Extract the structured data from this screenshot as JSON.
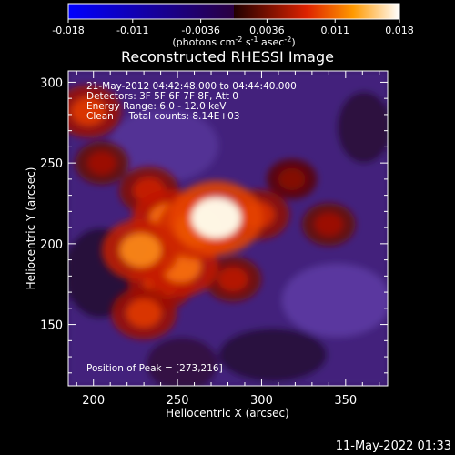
{
  "colorbar": {
    "tick_labels": [
      "-0.018",
      "-0.011",
      "-0.0036",
      "0.0036",
      "0.011",
      "0.018"
    ],
    "tick_values": [
      -0.018,
      -0.011,
      -0.0036,
      0.0036,
      0.011,
      0.018
    ],
    "range": [
      -0.018,
      0.018
    ],
    "units_main": "(photons cm",
    "units_sup1": "-2",
    "units_mid": " s",
    "units_sup2": "-1",
    "units_end": " asec",
    "units_sup3": "-2",
    "units_close": ")"
  },
  "chart_data": {
    "type": "heatmap",
    "title": "Reconstructed RHESSI Image",
    "xlabel": "Heliocentric X (arcsec)",
    "ylabel": "Heliocentric Y (arcsec)",
    "xlim": [
      185,
      375
    ],
    "ylim": [
      112,
      307
    ],
    "xticks": [
      200,
      250,
      300,
      350
    ],
    "yticks": [
      150,
      200,
      250,
      300
    ],
    "xtick_labels": [
      "200",
      "250",
      "300",
      "350"
    ],
    "ytick_labels": [
      "150",
      "200",
      "250",
      "300"
    ],
    "sources": [
      {
        "x": 273,
        "y": 216,
        "value": 0.018
      },
      {
        "x": 262,
        "y": 210,
        "value": 0.014
      },
      {
        "x": 245,
        "y": 215,
        "value": 0.012
      },
      {
        "x": 228,
        "y": 196,
        "value": 0.013
      },
      {
        "x": 252,
        "y": 186,
        "value": 0.012
      },
      {
        "x": 240,
        "y": 175,
        "value": 0.009
      },
      {
        "x": 230,
        "y": 157,
        "value": 0.009
      },
      {
        "x": 197,
        "y": 282,
        "value": 0.009
      },
      {
        "x": 205,
        "y": 250,
        "value": 0.005
      },
      {
        "x": 283,
        "y": 178,
        "value": 0.006
      },
      {
        "x": 298,
        "y": 218,
        "value": 0.008
      },
      {
        "x": 340,
        "y": 212,
        "value": 0.005
      },
      {
        "x": 318,
        "y": 240,
        "value": 0.004
      },
      {
        "x": 233,
        "y": 233,
        "value": 0.007
      }
    ],
    "annotations": [
      "21-May-2012 04:42:48.000 to 04:44:40.000",
      "Detectors: 3F 5F 6F 7F 8F, Att 0",
      "Energy Range: 6.0 - 12.0 keV",
      "Clean     Total counts: 8.14E+03"
    ],
    "peak_label": "Position of Peak = [273,216]"
  },
  "footer": {
    "timestamp": "11-May-2022 01:33"
  }
}
